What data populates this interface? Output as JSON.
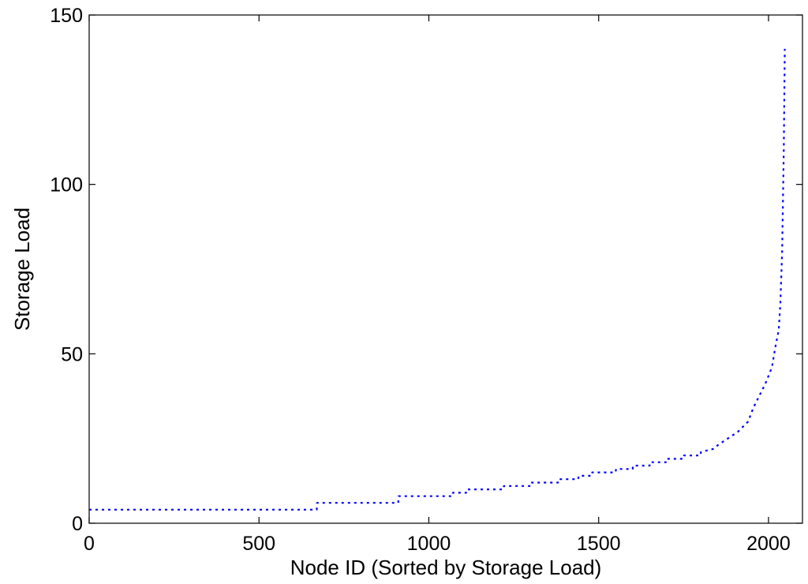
{
  "chart_data": {
    "type": "line",
    "title": "",
    "xlabel": "Node ID (Sorted by Storage Load)",
    "ylabel": "Storage Load",
    "xlim": [
      0,
      2100
    ],
    "ylim": [
      0,
      150
    ],
    "xticks": [
      0,
      500,
      1000,
      1500,
      2000
    ],
    "yticks": [
      0,
      50,
      100,
      150
    ],
    "grid": false,
    "legend": "none",
    "line_style": "dotted",
    "series": [
      {
        "color": "#0000ff",
        "x": [
          0,
          670,
          671,
          910,
          911,
          1070,
          1071,
          1110,
          1111,
          1220,
          1221,
          1300,
          1301,
          1380,
          1381,
          1440,
          1441,
          1480,
          1481,
          1550,
          1551,
          1600,
          1601,
          1650,
          1651,
          1700,
          1701,
          1750,
          1751,
          1800,
          1801,
          1840,
          1850,
          1880,
          1910,
          1940,
          1955,
          1970,
          1990,
          2010,
          2020,
          2030,
          2035,
          2040,
          2045,
          2048
        ],
        "y": [
          4,
          4,
          6,
          6,
          8,
          8,
          9,
          9,
          10,
          10,
          11,
          11,
          12,
          12,
          13,
          13,
          14,
          14,
          15,
          15,
          16,
          16,
          17,
          17,
          18,
          18,
          19,
          19,
          20,
          20,
          21,
          22,
          23,
          25,
          27,
          30,
          34,
          37,
          41,
          46,
          52,
          57,
          65,
          80,
          110,
          140
        ]
      }
    ]
  }
}
